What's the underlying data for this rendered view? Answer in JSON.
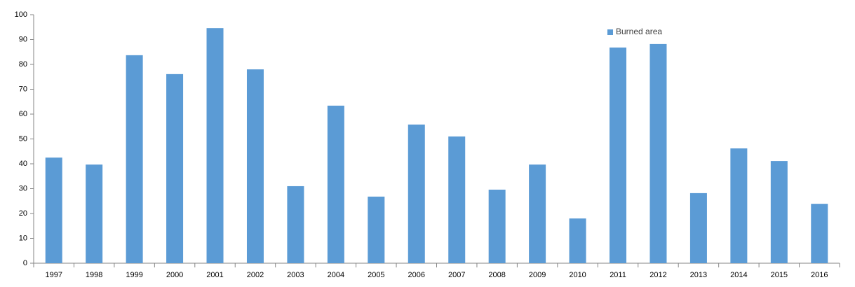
{
  "chart_data": {
    "type": "bar",
    "categories": [
      "1997",
      "1998",
      "1999",
      "2000",
      "2001",
      "2002",
      "2003",
      "2004",
      "2005",
      "2006",
      "2007",
      "2008",
      "2009",
      "2010",
      "2011",
      "2012",
      "2013",
      "2014",
      "2015",
      "2016"
    ],
    "series": [
      {
        "name": "Burned area",
        "color": "#5b9bd5",
        "values": [
          42.5,
          39.7,
          83.7,
          76.1,
          94.6,
          78.0,
          31.0,
          63.4,
          26.8,
          55.8,
          51.0,
          29.6,
          39.7,
          18.0,
          86.8,
          88.2,
          28.2,
          46.2,
          41.1,
          23.9
        ]
      }
    ],
    "ylim": [
      0,
      100
    ],
    "yticks": [
      0,
      10,
      20,
      30,
      40,
      50,
      60,
      70,
      80,
      90,
      100
    ],
    "grid": false,
    "legend": "top-right"
  }
}
